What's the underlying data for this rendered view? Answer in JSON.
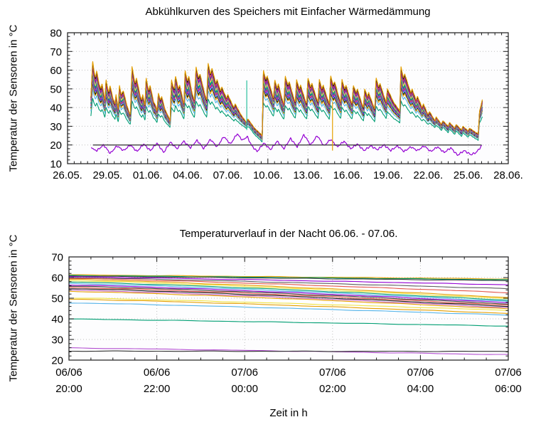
{
  "chart_data": [
    {
      "type": "line",
      "title": "Abkühlkurven des Speichers mit Einfacher Wärmedämmung",
      "ylabel": "Temperatur der Sensoren in °C",
      "xlabel": "",
      "ylim": [
        10,
        80
      ],
      "yticks": [
        10,
        20,
        30,
        40,
        50,
        60,
        70,
        80
      ],
      "y_minor_step": 2,
      "xlim_days": [
        0,
        33
      ],
      "xtick_interval_days": 3,
      "x_minor_step_days": 0.5,
      "xtick_labels": [
        "26.05.",
        "29.05.",
        "01.06.",
        "04.06.",
        "07.06.",
        "10.06.",
        "13.06.",
        "16.06.",
        "19.06.",
        "22.06.",
        "25.06.",
        "28.06."
      ],
      "grid": true,
      "legend": "none",
      "bundle_model": {
        "comment_start_day_is_offset_from": "26.05.",
        "bundle_top_keypoints": [
          [
            1.75,
            46
          ],
          [
            1.88,
            65
          ],
          [
            2.02,
            58
          ],
          [
            2.1,
            56
          ],
          [
            2.18,
            60
          ],
          [
            2.35,
            53
          ],
          [
            2.5,
            50
          ],
          [
            2.58,
            53
          ],
          [
            2.8,
            44
          ],
          [
            2.88,
            55
          ],
          [
            3.02,
            50
          ],
          [
            3.1,
            48
          ],
          [
            3.18,
            52
          ],
          [
            3.4,
            45
          ],
          [
            3.55,
            42
          ],
          [
            3.63,
            47
          ],
          [
            3.8,
            39
          ],
          [
            3.88,
            52
          ],
          [
            4.02,
            47
          ],
          [
            4.18,
            49
          ],
          [
            4.45,
            41
          ],
          [
            4.6,
            38
          ],
          [
            4.7,
            36
          ],
          [
            4.83,
            62
          ],
          [
            5.0,
            55
          ],
          [
            5.08,
            53
          ],
          [
            5.16,
            56
          ],
          [
            5.45,
            46
          ],
          [
            5.55,
            44
          ],
          [
            5.63,
            47
          ],
          [
            5.8,
            41
          ],
          [
            5.88,
            56
          ],
          [
            6.02,
            51
          ],
          [
            6.1,
            49
          ],
          [
            6.18,
            52
          ],
          [
            6.45,
            43
          ],
          [
            6.6,
            41
          ],
          [
            6.7,
            38
          ],
          [
            6.8,
            48
          ],
          [
            6.95,
            44
          ],
          [
            7.05,
            46
          ],
          [
            7.3,
            39
          ],
          [
            7.5,
            36
          ],
          [
            7.68,
            33
          ],
          [
            7.78,
            55
          ],
          [
            7.92,
            51
          ],
          [
            8.0,
            50
          ],
          [
            8.08,
            57
          ],
          [
            8.3,
            50
          ],
          [
            8.4,
            52
          ],
          [
            8.65,
            44
          ],
          [
            8.72,
            42
          ],
          [
            8.8,
            60
          ],
          [
            8.98,
            54
          ],
          [
            9.08,
            57
          ],
          [
            9.35,
            47
          ],
          [
            9.5,
            44
          ],
          [
            9.62,
            62
          ],
          [
            9.8,
            56
          ],
          [
            9.92,
            58
          ],
          [
            10.25,
            48
          ],
          [
            10.42,
            44
          ],
          [
            10.52,
            64
          ],
          [
            10.7,
            58
          ],
          [
            10.82,
            61
          ],
          [
            11.1,
            53
          ],
          [
            11.2,
            55
          ],
          [
            11.45,
            49
          ],
          [
            11.55,
            51
          ],
          [
            11.9,
            45
          ],
          [
            12.0,
            47
          ],
          [
            12.45,
            40
          ],
          [
            12.55,
            42
          ],
          [
            13.0,
            36
          ],
          [
            13.4,
            32
          ],
          [
            13.5,
            34
          ],
          [
            14.0,
            29
          ],
          [
            14.45,
            26
          ],
          [
            14.58,
            25
          ],
          [
            14.66,
            60
          ],
          [
            14.85,
            55
          ],
          [
            14.95,
            57
          ],
          [
            15.3,
            48
          ],
          [
            15.42,
            45
          ],
          [
            15.52,
            55
          ],
          [
            15.7,
            50
          ],
          [
            15.78,
            53
          ],
          [
            16.05,
            45
          ],
          [
            16.2,
            42
          ],
          [
            16.3,
            57
          ],
          [
            16.5,
            52
          ],
          [
            16.6,
            54
          ],
          [
            16.9,
            46
          ],
          [
            17.05,
            43
          ],
          [
            17.15,
            55
          ],
          [
            17.35,
            50
          ],
          [
            17.45,
            52
          ],
          [
            17.75,
            45
          ],
          [
            17.9,
            42
          ],
          [
            18.0,
            56
          ],
          [
            18.2,
            51
          ],
          [
            18.3,
            53
          ],
          [
            18.6,
            46
          ],
          [
            18.75,
            43
          ],
          [
            18.85,
            55
          ],
          [
            19.05,
            50
          ],
          [
            19.15,
            52
          ],
          [
            19.45,
            45
          ],
          [
            19.6,
            42
          ],
          [
            19.7,
            57
          ],
          [
            19.9,
            52
          ],
          [
            20.0,
            54
          ],
          [
            20.3,
            46
          ],
          [
            20.45,
            43
          ],
          [
            20.55,
            55
          ],
          [
            20.75,
            50
          ],
          [
            20.85,
            52
          ],
          [
            21.15,
            45
          ],
          [
            21.3,
            42
          ],
          [
            21.4,
            52
          ],
          [
            21.6,
            48
          ],
          [
            21.7,
            50
          ],
          [
            22.0,
            43
          ],
          [
            22.15,
            40
          ],
          [
            22.25,
            50
          ],
          [
            22.45,
            46
          ],
          [
            22.55,
            48
          ],
          [
            22.85,
            42
          ],
          [
            23.0,
            39
          ],
          [
            23.1,
            56
          ],
          [
            23.3,
            51
          ],
          [
            23.4,
            53
          ],
          [
            23.7,
            46
          ],
          [
            23.85,
            43
          ],
          [
            23.95,
            50
          ],
          [
            24.15,
            47
          ],
          [
            24.4,
            43
          ],
          [
            24.7,
            40
          ],
          [
            24.88,
            38
          ],
          [
            24.96,
            62
          ],
          [
            25.15,
            56
          ],
          [
            25.25,
            58
          ],
          [
            25.6,
            50
          ],
          [
            25.72,
            48
          ],
          [
            25.8,
            50
          ],
          [
            26.1,
            44
          ],
          [
            26.2,
            46
          ],
          [
            26.55,
            40
          ],
          [
            26.65,
            42
          ],
          [
            27.0,
            36
          ],
          [
            27.1,
            38
          ],
          [
            27.5,
            33
          ],
          [
            27.6,
            35
          ],
          [
            28.0,
            31
          ],
          [
            28.1,
            33
          ],
          [
            28.5,
            30
          ],
          [
            28.6,
            32
          ],
          [
            29.0,
            29
          ],
          [
            29.1,
            31
          ],
          [
            29.5,
            28
          ],
          [
            29.6,
            30
          ],
          [
            30.0,
            27.5
          ],
          [
            30.1,
            29
          ],
          [
            30.5,
            27
          ],
          [
            30.75,
            26
          ],
          [
            30.85,
            38
          ],
          [
            31.05,
            44
          ]
        ],
        "spread": {
          "factor": 0.33,
          "min": 2.2,
          "max": 13.5
        },
        "sensors": [
          {
            "f": 1.55,
            "color": "#009e73"
          },
          {
            "f": 1.18,
            "color": "#56b4e9"
          },
          {
            "f": 1.0,
            "color": "#e69f00"
          },
          {
            "f": 0.91,
            "color": "#1a1a1a"
          },
          {
            "f": 0.83,
            "color": "#56b4e9"
          },
          {
            "f": 0.75,
            "color": "#9400d3"
          },
          {
            "f": 0.675,
            "color": "#e45649"
          },
          {
            "f": 0.6,
            "color": "#0072b2"
          },
          {
            "f": 0.525,
            "color": "#009e73"
          },
          {
            "f": 0.45,
            "color": "#f0e442"
          },
          {
            "f": 0.375,
            "color": "#bf60bf"
          },
          {
            "f": 0.3,
            "color": "#606060"
          },
          {
            "f": 0.225,
            "color": "#9400d3"
          },
          {
            "f": 0.15,
            "color": "#e45649"
          },
          {
            "f": 0.075,
            "color": "#1a1a1a"
          },
          {
            "f": 0.0,
            "color": "#e69f00"
          }
        ]
      },
      "ambient_series": {
        "color": "#9400d3",
        "keypoints": [
          [
            1.8,
            19
          ],
          [
            1.95,
            17.5
          ],
          [
            2.2,
            17
          ],
          [
            2.7,
            20
          ],
          [
            3.2,
            15.5
          ],
          [
            3.7,
            19.5
          ],
          [
            4.2,
            17
          ],
          [
            4.7,
            20
          ],
          [
            5.2,
            16.5
          ],
          [
            5.7,
            20.5
          ],
          [
            6.2,
            17
          ],
          [
            6.7,
            21
          ],
          [
            7.2,
            16
          ],
          [
            7.7,
            21.5
          ],
          [
            8.2,
            18
          ],
          [
            8.7,
            22
          ],
          [
            9.2,
            18.5
          ],
          [
            9.7,
            22.5
          ],
          [
            10.2,
            18
          ],
          [
            10.7,
            23
          ],
          [
            11.2,
            19
          ],
          [
            11.7,
            24.5
          ],
          [
            12.2,
            20.5
          ],
          [
            12.7,
            26
          ],
          [
            13.1,
            22.5
          ],
          [
            13.45,
            24.5
          ],
          [
            13.8,
            19.5
          ],
          [
            14.2,
            16.5
          ],
          [
            14.7,
            21
          ],
          [
            15.2,
            17.5
          ],
          [
            15.7,
            22
          ],
          [
            16.2,
            18
          ],
          [
            16.7,
            23.5
          ],
          [
            17.2,
            19
          ],
          [
            17.7,
            25.5
          ],
          [
            18.2,
            20
          ],
          [
            18.7,
            25
          ],
          [
            19.2,
            19.5
          ],
          [
            19.7,
            23
          ],
          [
            20.2,
            19
          ],
          [
            20.7,
            22
          ],
          [
            21.2,
            18
          ],
          [
            21.7,
            20.5
          ],
          [
            22.2,
            17
          ],
          [
            22.7,
            19.5
          ],
          [
            23.2,
            17.5
          ],
          [
            23.7,
            20
          ],
          [
            24.2,
            17
          ],
          [
            24.7,
            19.5
          ],
          [
            25.2,
            16.5
          ],
          [
            25.7,
            19
          ],
          [
            26.2,
            17
          ],
          [
            26.7,
            19.5
          ],
          [
            27.2,
            16.5
          ],
          [
            27.7,
            19
          ],
          [
            28.2,
            16
          ],
          [
            28.7,
            18.5
          ],
          [
            29.2,
            14.5
          ],
          [
            29.7,
            17
          ],
          [
            30.2,
            14.8
          ],
          [
            30.6,
            16
          ],
          [
            31.0,
            19.5
          ]
        ]
      },
      "reference_line": {
        "value": 20,
        "from_day": 1.9,
        "to_day": 31.0,
        "color": "#303030"
      },
      "glitch_lines": [
        {
          "day": 13.42,
          "from": 28,
          "to": 54.5,
          "color": "#2bbf9e"
        },
        {
          "day": 19.84,
          "from": 17,
          "to": 43,
          "color": "#e69f00"
        }
      ]
    },
    {
      "type": "line",
      "title": "Temperaturverlauf in der Nacht 06.06. - 07.06.",
      "ylabel": "Temperatur der Sensoren in °C",
      "xlabel": "Zeit in h",
      "ylim": [
        20,
        70
      ],
      "yticks": [
        20,
        30,
        40,
        50,
        60,
        70
      ],
      "y_minor_step": 2,
      "duration_hours": 10,
      "xtick_interval_hours": 2,
      "x_minor_step_hours": 0.5,
      "xtick_labels": [
        [
          "06/06",
          "20:00"
        ],
        [
          "06/06",
          "22:00"
        ],
        [
          "07/06",
          "00:00"
        ],
        [
          "07/06",
          "02:00"
        ],
        [
          "07/06",
          "04:00"
        ],
        [
          "07/06",
          "06:00"
        ]
      ],
      "grid": true,
      "legend": "none",
      "series": [
        {
          "start": 61.3,
          "end": 59.3,
          "color": "#e69f00"
        },
        {
          "start": 61.0,
          "end": 58.9,
          "color": "#009e73"
        },
        {
          "start": 60.7,
          "end": 58.5,
          "color": "#3a3a3a"
        },
        {
          "start": 60.4,
          "end": 56.5,
          "color": "#9400d3"
        },
        {
          "start": 60.0,
          "end": 54.6,
          "color": "#606060"
        },
        {
          "start": 59.6,
          "end": 52.7,
          "color": "#e45649"
        },
        {
          "start": 59.1,
          "end": 50.3,
          "color": "#e69f00"
        },
        {
          "start": 58.5,
          "end": 49.7,
          "color": "#f0e442"
        },
        {
          "start": 57.8,
          "end": 49.0,
          "color": "#009e73"
        },
        {
          "start": 57.1,
          "end": 48.4,
          "color": "#56b4e9"
        },
        {
          "start": 56.4,
          "end": 47.8,
          "color": "#9400d3"
        },
        {
          "start": 55.8,
          "end": 47.2,
          "color": "#404040"
        },
        {
          "start": 55.2,
          "end": 46.6,
          "color": "#e45649"
        },
        {
          "start": 54.6,
          "end": 46.0,
          "color": "#1a1a1a"
        },
        {
          "start": 53.9,
          "end": 45.4,
          "color": "#bf60bf"
        },
        {
          "start": 53.3,
          "end": 44.8,
          "color": "#e69f00"
        },
        {
          "start": 50.1,
          "end": 44.1,
          "color": "#f0e442"
        },
        {
          "start": 49.5,
          "end": 42.6,
          "color": "#e69f00"
        },
        {
          "start": 47.7,
          "end": 41.8,
          "color": "#56b4e9"
        },
        {
          "start": 39.9,
          "end": 36.5,
          "color": "#009e73"
        },
        {
          "start": 25.9,
          "end": 22.6,
          "color": "#b34fd1"
        },
        {
          "start": 24.35,
          "end": 24.2,
          "color": "#303030"
        }
      ]
    }
  ]
}
